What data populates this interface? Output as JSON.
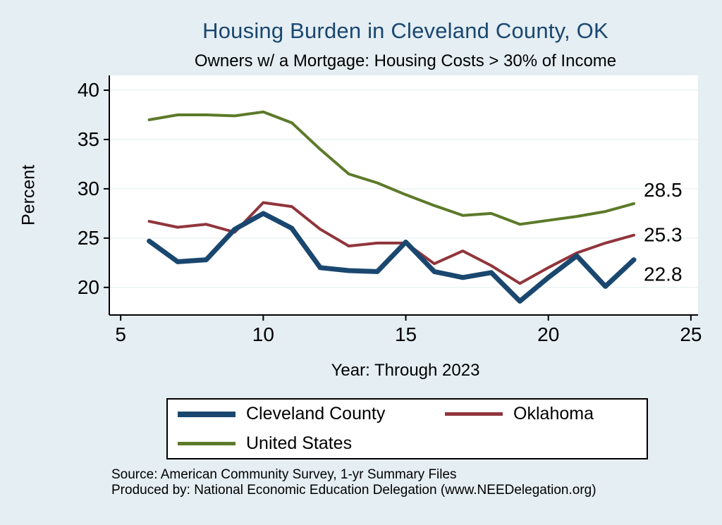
{
  "title": "Housing Burden in Cleveland County, OK",
  "subtitle": "Owners w/ a Mortgage: Housing Costs > 30% of Income",
  "xlabel": "Year: Through 2023",
  "ylabel": "Percent",
  "source": {
    "line1": "Source: American Community Survey, 1-yr Summary Files",
    "line2": "Produced by: National Economic Education Delegation (www.NEEDelegation.org)"
  },
  "colors": {
    "background": "#e4eef3",
    "plot_background": "#ffffff",
    "title": "#1a476f",
    "axis": "#000000",
    "gridline": "#e2ecef"
  },
  "legend": {
    "items": [
      {
        "label": "Cleveland County"
      },
      {
        "label": "Oklahoma"
      },
      {
        "label": "United States"
      }
    ]
  },
  "chart_data": {
    "type": "line",
    "title": "Housing Burden in Cleveland County, OK",
    "subtitle": "Owners w/ a Mortgage: Housing Costs > 30% of Income",
    "xlabel": "Year: Through 2023",
    "ylabel": "Percent",
    "x": [
      6,
      7,
      8,
      9,
      10,
      11,
      12,
      13,
      14,
      15,
      16,
      17,
      18,
      19,
      20,
      21,
      22,
      23
    ],
    "series": [
      {
        "name": "Cleveland County",
        "color": "#1a476f",
        "width": 7,
        "values": [
          24.7,
          22.6,
          22.8,
          25.9,
          27.5,
          26.0,
          22.0,
          21.7,
          21.6,
          24.6,
          21.6,
          21.0,
          21.5,
          18.6,
          21.0,
          23.2,
          20.1,
          22.8
        ]
      },
      {
        "name": "Oklahoma",
        "color": "#90353b",
        "width": 4,
        "values": [
          26.7,
          26.1,
          26.4,
          25.6,
          28.6,
          28.2,
          25.9,
          24.2,
          24.5,
          24.5,
          22.4,
          23.7,
          22.2,
          20.4,
          22.0,
          23.5,
          24.5,
          25.3
        ]
      },
      {
        "name": "United States",
        "color": "#5c7a29",
        "width": 4,
        "values": [
          37.0,
          37.5,
          37.5,
          37.4,
          37.8,
          36.7,
          34.0,
          31.5,
          30.6,
          29.4,
          28.3,
          27.3,
          27.5,
          26.4,
          26.8,
          27.2,
          27.7,
          28.5
        ]
      }
    ],
    "end_labels": [
      {
        "text": "28.5",
        "value": 28.5,
        "dy": -10
      },
      {
        "text": "25.3",
        "value": 25.3,
        "dy": 9
      },
      {
        "text": "22.8",
        "value": 22.8,
        "dy": 30
      }
    ],
    "xticks": [
      5,
      10,
      15,
      20,
      25
    ],
    "yticks": [
      20,
      25,
      30,
      35,
      40
    ],
    "xlim": [
      4.6,
      25.25
    ],
    "ylim": [
      17.2,
      41.5
    ],
    "grid": true,
    "legend_position": "bottom"
  }
}
